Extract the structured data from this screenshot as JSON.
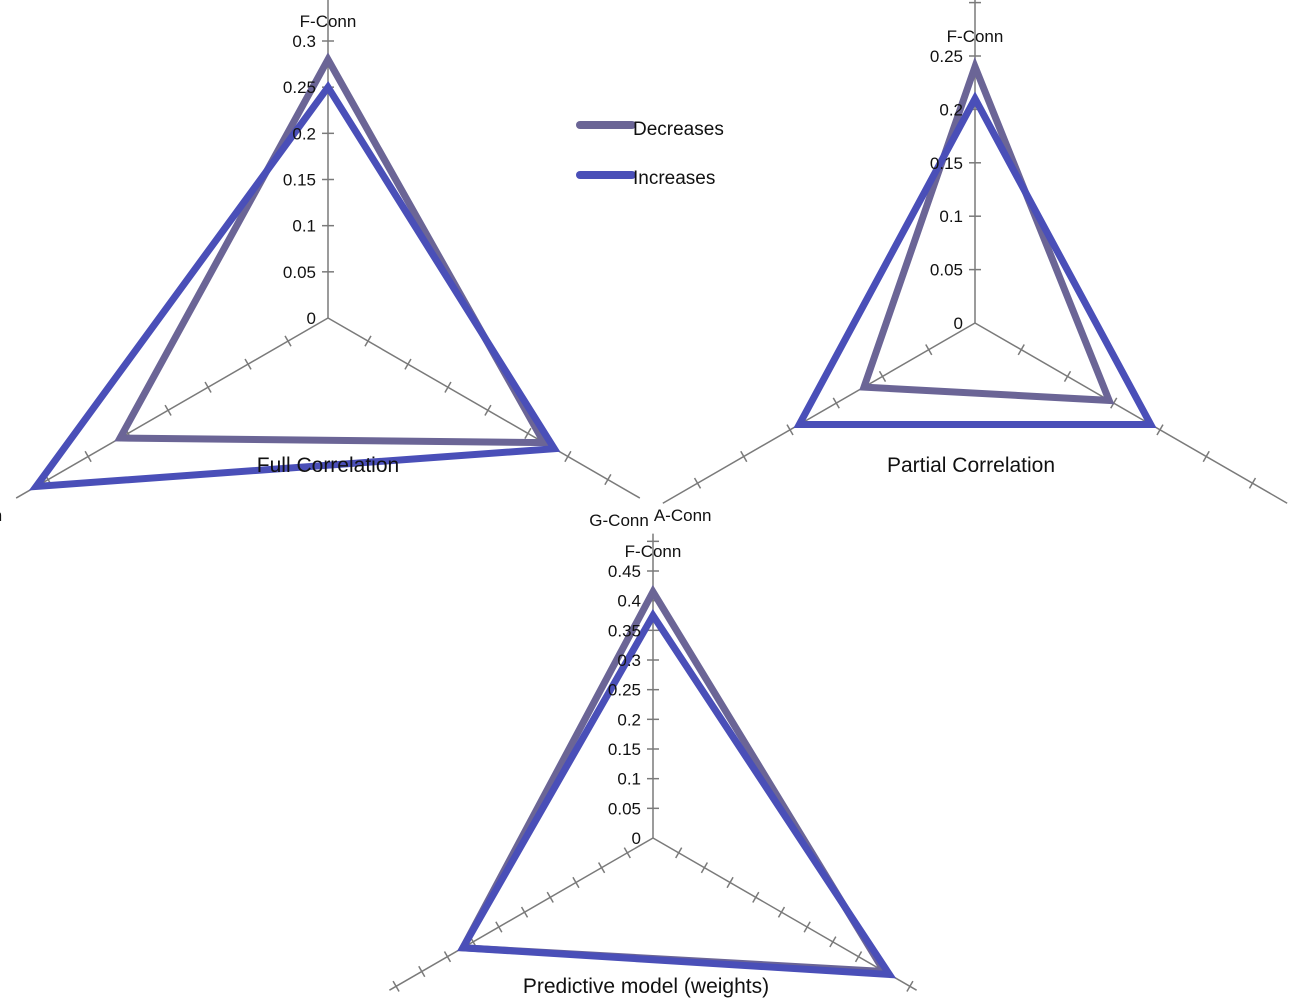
{
  "legend": {
    "items": [
      {
        "label": "Decreases",
        "color": "#6b6596"
      },
      {
        "label": "Increases",
        "color": "#4a4fb8"
      }
    ]
  },
  "chart_data": [
    {
      "type": "radar",
      "title": "Full Correlation",
      "axes": [
        "F-Conn",
        "A-Conn",
        "G-Conn"
      ],
      "ticks": [
        "0",
        "0.05",
        "0.1",
        "0.15",
        "0.2",
        "0.25",
        "0.3"
      ],
      "rmax": 0.3,
      "series": [
        {
          "name": "Decreases",
          "color": "#6b6596",
          "values": [
            0.28,
            0.27,
            0.26
          ]
        },
        {
          "name": "Increases",
          "color": "#4a4fb8",
          "values": [
            0.25,
            0.283,
            0.365
          ]
        }
      ]
    },
    {
      "type": "radar",
      "title": "Partial Correlation",
      "axes": [
        "F-Conn",
        "A-Conn",
        "G-Conn"
      ],
      "ticks": [
        "0",
        "0.05",
        "0.1",
        "0.15",
        "0.2",
        "0.25"
      ],
      "rmax": 0.25,
      "series": [
        {
          "name": "Decreases",
          "color": "#6b6596",
          "values": [
            0.24,
            0.145,
            0.12
          ]
        },
        {
          "name": "Increases",
          "color": "#4a4fb8",
          "values": [
            0.21,
            0.19,
            0.19
          ]
        }
      ]
    },
    {
      "type": "radar",
      "title": "Predictive model (weights)",
      "axes": [
        "F-Conn",
        "A-Conn",
        "G-Conn"
      ],
      "ticks": [
        "0",
        "0.05",
        "0.1",
        "0.15",
        "0.2",
        "0.25",
        "0.3",
        "0.35",
        "0.4",
        "0.45"
      ],
      "rmax": 0.45,
      "series": [
        {
          "name": "Decreases",
          "color": "#6b6596",
          "values": [
            0.415,
            0.45,
            0.37
          ]
        },
        {
          "name": "Increases",
          "color": "#4a4fb8",
          "values": [
            0.375,
            0.46,
            0.37
          ]
        }
      ]
    }
  ]
}
